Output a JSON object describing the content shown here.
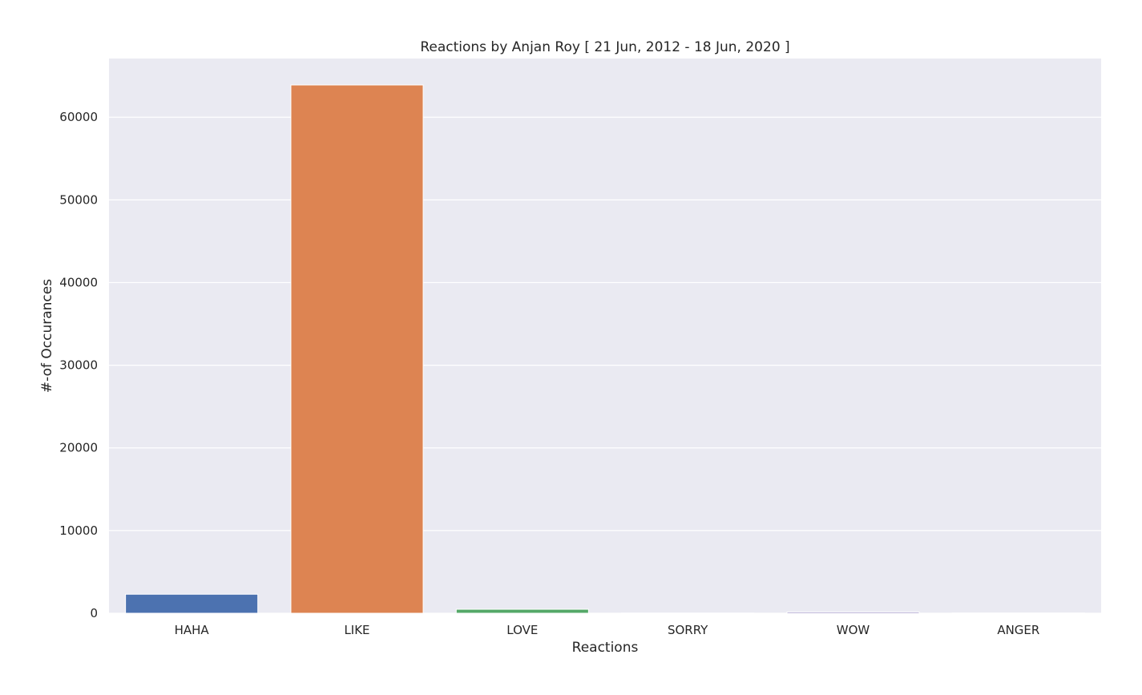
{
  "chart_data": {
    "type": "bar",
    "title": "Reactions by Anjan Roy [ 21 Jun, 2012 - 18 Jun, 2020 ]",
    "xlabel": "Reactions",
    "ylabel": "#-of Occurances",
    "categories": [
      "HAHA",
      "LIKE",
      "LOVE",
      "SORRY",
      "WOW",
      "ANGER"
    ],
    "values": [
      2300,
      63900,
      480,
      20,
      150,
      30
    ],
    "colors": [
      "#4c72b0",
      "#dd8452",
      "#55a868",
      "#c44e52",
      "#8172b3",
      "#937860"
    ],
    "ylim": [
      0,
      67100
    ],
    "yticks": [
      0,
      10000,
      20000,
      30000,
      40000,
      50000,
      60000
    ],
    "ytick_labels": [
      "0",
      "10000",
      "20000",
      "30000",
      "40000",
      "50000",
      "60000"
    ],
    "grid": true,
    "plot_background": "#eaeaf2",
    "grid_color": "#ffffff"
  }
}
